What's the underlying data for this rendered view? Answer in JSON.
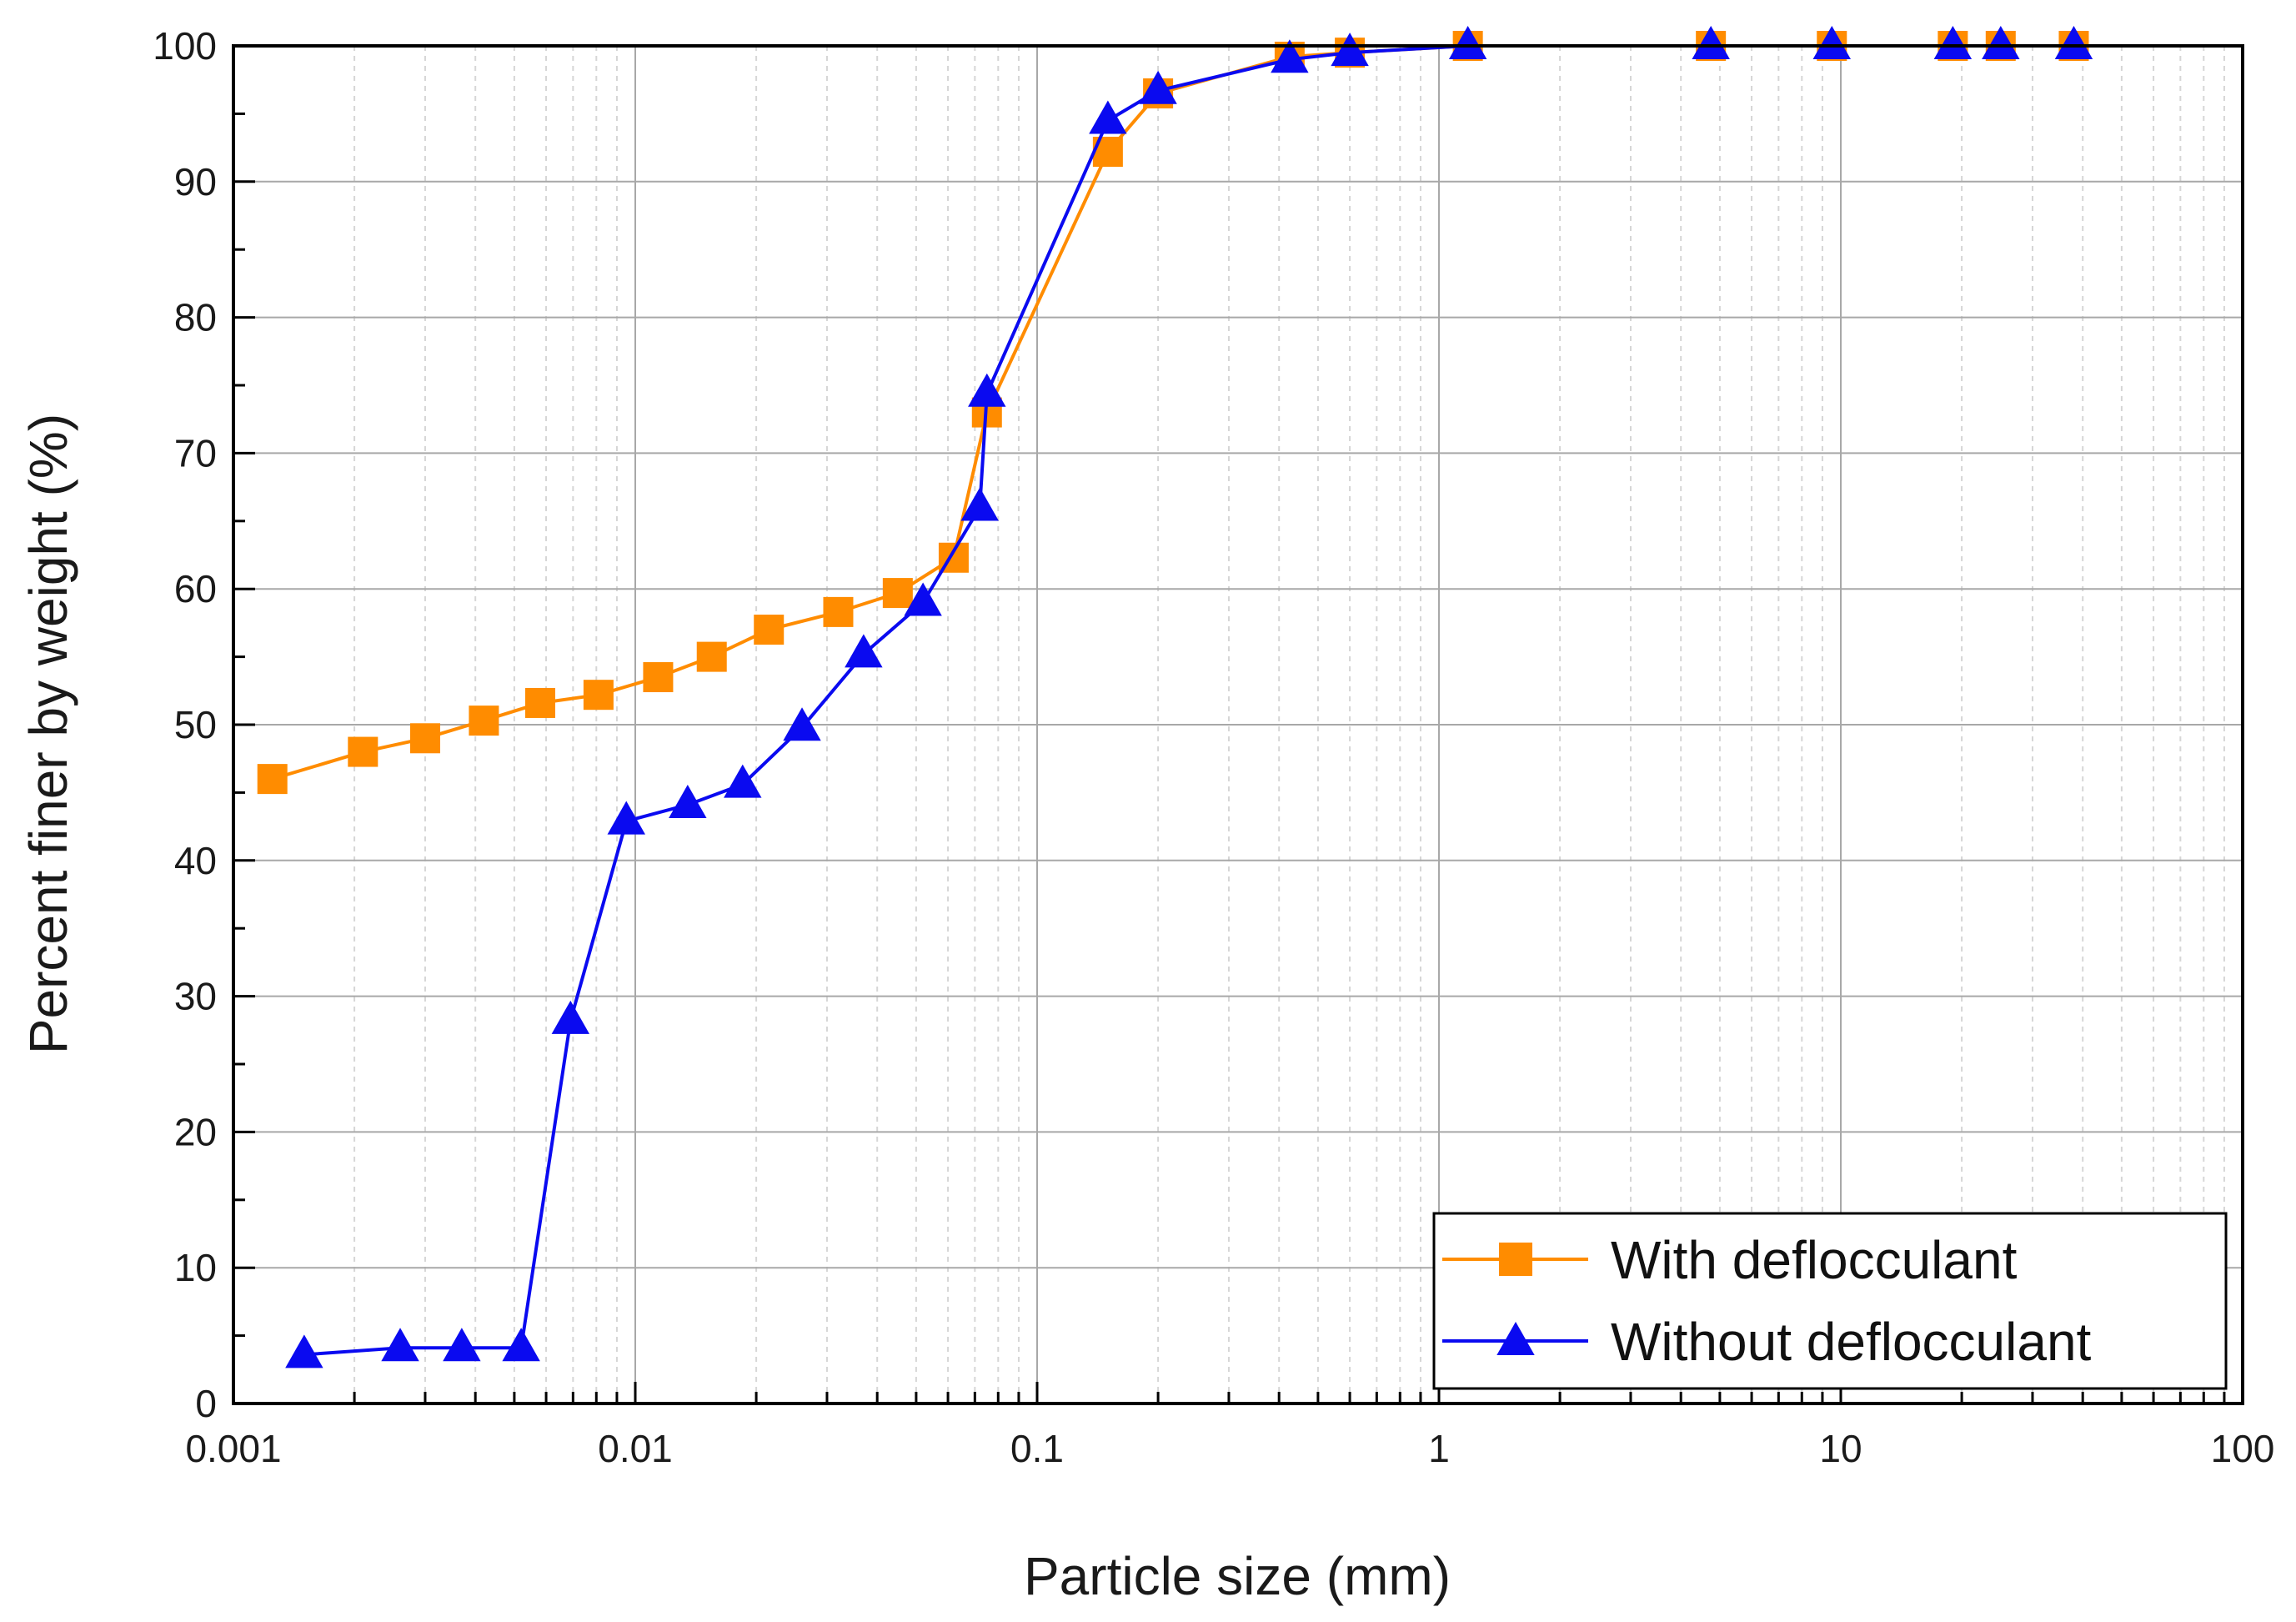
{
  "chart_data": {
    "type": "line",
    "title": "",
    "xlabel": "Particle size (mm)",
    "ylabel": "Percent finer by weight (%)",
    "xscale": "log",
    "xlim": [
      0.001,
      100
    ],
    "ylim": [
      0,
      100
    ],
    "grid": true,
    "x_ticks": [
      "0.001",
      "0.01",
      "0.1",
      "1",
      "10",
      "100"
    ],
    "y_ticks": [
      "0",
      "10",
      "20",
      "30",
      "40",
      "50",
      "60",
      "70",
      "80",
      "90",
      "100"
    ],
    "legend_position": "bottom-right",
    "series": [
      {
        "name": "With deflocculant",
        "color": "#FF8C00",
        "marker": "square",
        "x": [
          0.00125,
          0.0021,
          0.003,
          0.0042,
          0.0058,
          0.0081,
          0.0114,
          0.0155,
          0.0215,
          0.032,
          0.045,
          0.062,
          0.075,
          0.15,
          0.2,
          0.425,
          0.6,
          1.18,
          4.75,
          9.5,
          19,
          25,
          38
        ],
        "y": [
          46,
          48,
          49,
          50.3,
          51.6,
          52.2,
          53.5,
          55,
          57,
          58.3,
          59.7,
          62.3,
          73,
          92.2,
          96.5,
          99.2,
          99.5,
          100,
          100,
          100,
          100,
          100,
          100
        ]
      },
      {
        "name": "Without deflocculant",
        "color": "#0A0AF0",
        "marker": "triangle",
        "x": [
          0.0015,
          0.0026,
          0.0037,
          0.0052,
          0.0069,
          0.0095,
          0.0135,
          0.0185,
          0.026,
          0.037,
          0.052,
          0.072,
          0.075,
          0.15,
          0.2,
          0.425,
          0.6,
          1.18,
          4.75,
          9.5,
          19,
          25,
          38
        ],
        "y": [
          3.6,
          4.1,
          4.1,
          4.1,
          28.2,
          42.9,
          44.1,
          45.6,
          49.8,
          55.2,
          59,
          66,
          74.4,
          94.5,
          96.7,
          99,
          99.5,
          100,
          100,
          100,
          100,
          100,
          100
        ]
      }
    ]
  }
}
